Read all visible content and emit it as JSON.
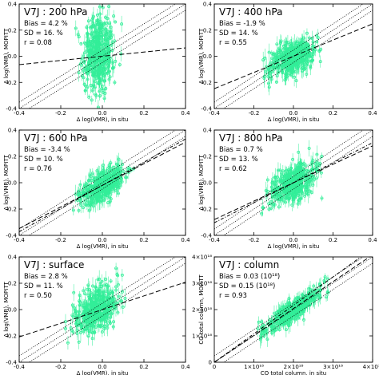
{
  "chart_data": [
    {
      "type": "scatter",
      "panel": "V7J : 200 hPa",
      "title": "V7J : 200 hPa",
      "stats": [
        "Bias = 4.2 %",
        "SD = 16. %",
        "r = 0.08"
      ],
      "xlabel": "Δ log(VMR), in situ",
      "ylabel": "Δ log(VMR), MOPITT",
      "xlim": [
        -0.4,
        0.4
      ],
      "ylim": [
        -0.4,
        0.4
      ],
      "xticks": [
        "-0.4",
        "-0.2",
        "0.0",
        "0.2",
        "0.4"
      ],
      "yticks": [
        "-0.4",
        "-0.2",
        "0.0",
        "0.2",
        "0.4"
      ],
      "point_color": "#33ee99",
      "regression": {
        "slope": 0.16,
        "intercept": 0.0
      },
      "cloud": {
        "center": [
          -0.02,
          0.02
        ],
        "sd": [
          0.05,
          0.15
        ],
        "r": 0.08,
        "xrange": [
          -0.16,
          0.2
        ]
      }
    },
    {
      "type": "scatter",
      "panel": "V7J : 400 hPa",
      "title": "V7J : 400 hPa",
      "stats": [
        "Bias = -1.9 %",
        "SD = 14. %",
        "r = 0.55"
      ],
      "xlabel": "Δ log(VMR), in situ",
      "ylabel": "Δ log(VMR), MOPITT",
      "xlim": [
        -0.4,
        0.4
      ],
      "ylim": [
        -0.4,
        0.4
      ],
      "xticks": [
        "-0.4",
        "-0.2",
        "0.0",
        "0.2",
        "0.4"
      ],
      "yticks": [
        "-0.4",
        "-0.2",
        "0.0",
        "0.2",
        "0.4"
      ],
      "point_color": "#33ee99",
      "regression": {
        "slope": 0.62,
        "intercept": 0.0
      },
      "cloud": {
        "center": [
          0.0,
          -0.01
        ],
        "sd": [
          0.08,
          0.08
        ],
        "r": 0.55,
        "xrange": [
          -0.2,
          0.25
        ]
      }
    },
    {
      "type": "scatter",
      "panel": "V7J : 600 hPa",
      "title": "V7J : 600 hPa",
      "stats": [
        "Bias = -3.4 %",
        "SD = 10. %",
        "r = 0.76"
      ],
      "xlabel": "Δ log(VMR), in situ",
      "ylabel": "Δ log(VMR), MOPITT",
      "xlim": [
        -0.4,
        0.4
      ],
      "ylim": [
        -0.4,
        0.4
      ],
      "xticks": [
        "-0.4",
        "-0.2",
        "0.0",
        "0.2",
        "0.4"
      ],
      "yticks": [
        "-0.4",
        "-0.2",
        "0.0",
        "0.2",
        "0.4"
      ],
      "point_color": "#33ee99",
      "regression": {
        "slope": 0.82,
        "intercept": -0.02
      },
      "cloud": {
        "center": [
          0.0,
          -0.02
        ],
        "sd": [
          0.07,
          0.08
        ],
        "r": 0.76,
        "xrange": [
          -0.18,
          0.22
        ]
      }
    },
    {
      "type": "scatter",
      "panel": "V7J : 800 hPa",
      "title": "V7J : 800 hPa",
      "stats": [
        "Bias = 0.7 %",
        "SD = 13. %",
        "r = 0.62"
      ],
      "xlabel": "Δ log(VMR), in situ",
      "ylabel": "Δ log(VMR), MOPITT",
      "xlim": [
        -0.4,
        0.4
      ],
      "ylim": [
        -0.4,
        0.4
      ],
      "xticks": [
        "-0.4",
        "-0.2",
        "0.0",
        "0.2",
        "0.4"
      ],
      "yticks": [
        "-0.4",
        "-0.2",
        "0.0",
        "0.2",
        "0.4"
      ],
      "point_color": "#33ee99",
      "regression": {
        "slope": 0.7,
        "intercept": 0.0
      },
      "cloud": {
        "center": [
          0.0,
          0.0
        ],
        "sd": [
          0.08,
          0.09
        ],
        "r": 0.62,
        "xrange": [
          -0.2,
          0.25
        ]
      }
    },
    {
      "type": "scatter",
      "panel": "V7J : surface",
      "title": "V7J : surface",
      "stats": [
        "Bias = 2.8 %",
        "SD = 11. %",
        "r = 0.50"
      ],
      "xlabel": "Δ log(VMR), in situ",
      "ylabel": "Δ log(VMR), MOPITT",
      "xlim": [
        -0.4,
        0.4
      ],
      "ylim": [
        -0.4,
        0.4
      ],
      "xticks": [
        "-0.4",
        "-0.2",
        "0.0",
        "0.2",
        "0.4"
      ],
      "yticks": [
        "-0.4",
        "-0.2",
        "0.0",
        "0.2",
        "0.4"
      ],
      "point_color": "#33ee99",
      "regression": {
        "slope": 0.52,
        "intercept": 0.0
      },
      "cloud": {
        "center": [
          -0.03,
          0.0
        ],
        "sd": [
          0.07,
          0.1
        ],
        "r": 0.5,
        "xrange": [
          -0.18,
          0.22
        ]
      }
    },
    {
      "type": "scatter",
      "panel": "V7J : column",
      "title": "V7J : column",
      "stats": [
        "Bias = 0.03 (10¹⁸)",
        "SD = 0.15 (10¹⁸)",
        "r = 0.93"
      ],
      "xlabel": "CO total column, in situ",
      "ylabel": "CO total column, MOPITT",
      "xlim": [
        0,
        4e+18
      ],
      "ylim": [
        0,
        4e+18
      ],
      "xticks": [
        "0",
        "1×10¹⁸",
        "2×10¹⁸",
        "3×10¹⁸",
        "4×10¹⁸"
      ],
      "yticks": [
        "0",
        "1×10¹⁸",
        "2×10¹⁸",
        "3×10¹⁸",
        "4×10¹⁸"
      ],
      "point_color": "#33ee99",
      "regression": {
        "slope": 1.02,
        "intercept": 0.0
      },
      "cloud": {
        "center": [
          1.95e+18,
          1.95e+18
        ],
        "sd": [
          4.5e+17,
          5e+17
        ],
        "r": 0.93,
        "xrange": [
          1.1e+18,
          3e+18
        ]
      }
    }
  ]
}
